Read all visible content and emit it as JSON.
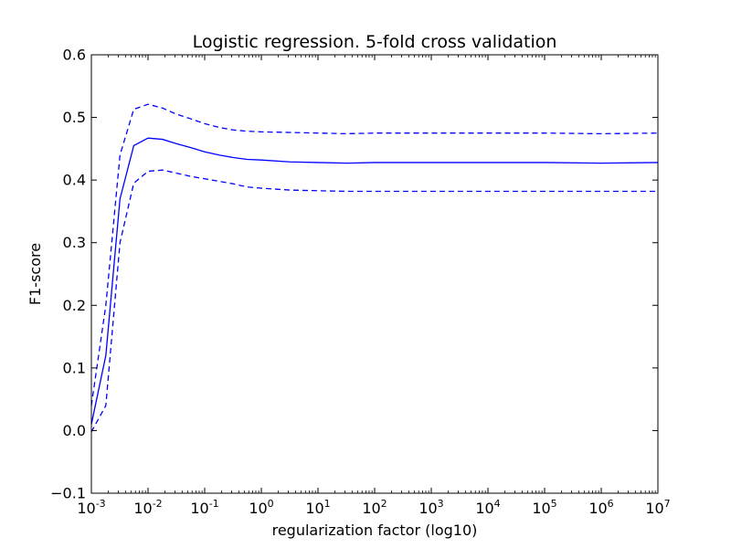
{
  "chart_data": {
    "type": "line",
    "title": "Logistic regression. 5-fold cross validation",
    "xlabel": "regularization factor (log10)",
    "ylabel": "F1-score",
    "xscale": "log",
    "xlim": [
      0.001,
      10000000
    ],
    "ylim": [
      -0.1,
      0.6
    ],
    "grid": false,
    "legend": "none",
    "line_color": "#0000ff",
    "yticks": [
      "−0.1",
      "0.0",
      "0.1",
      "0.2",
      "0.3",
      "0.4",
      "0.5",
      "0.6"
    ],
    "yticks_values": [
      -0.1,
      0.0,
      0.1,
      0.2,
      0.3,
      0.4,
      0.5,
      0.6
    ],
    "xticks": [
      {
        "base": "10",
        "exp": "-3"
      },
      {
        "base": "10",
        "exp": "-2"
      },
      {
        "base": "10",
        "exp": "-1"
      },
      {
        "base": "10",
        "exp": "0"
      },
      {
        "base": "10",
        "exp": "1"
      },
      {
        "base": "10",
        "exp": "2"
      },
      {
        "base": "10",
        "exp": "3"
      },
      {
        "base": "10",
        "exp": "4"
      },
      {
        "base": "10",
        "exp": "5"
      },
      {
        "base": "10",
        "exp": "6"
      },
      {
        "base": "10",
        "exp": "7"
      }
    ],
    "xticks_values": [
      0.001,
      0.01,
      0.1,
      1,
      10,
      100,
      1000,
      10000,
      100000,
      1000000,
      10000000
    ],
    "series": [
      {
        "style": "solid",
        "x": [
          0.001,
          0.0018,
          0.0032,
          0.0056,
          0.01,
          0.018,
          0.032,
          0.056,
          0.1,
          0.18,
          0.32,
          0.56,
          1,
          3.2,
          10,
          32,
          100,
          1000,
          10000,
          100000,
          1000000,
          10000000
        ],
        "y": [
          0.01,
          0.12,
          0.37,
          0.455,
          0.467,
          0.465,
          0.458,
          0.452,
          0.445,
          0.44,
          0.436,
          0.433,
          0.432,
          0.429,
          0.428,
          0.427,
          0.428,
          0.428,
          0.428,
          0.428,
          0.427,
          0.428
        ]
      },
      {
        "style": "dashed",
        "x": [
          0.001,
          0.0018,
          0.0032,
          0.0056,
          0.01,
          0.018,
          0.032,
          0.056,
          0.1,
          0.18,
          0.32,
          0.56,
          1,
          3.2,
          10,
          32,
          100,
          1000,
          10000,
          100000,
          1000000,
          10000000
        ],
        "y": [
          0.04,
          0.2,
          0.44,
          0.513,
          0.521,
          0.515,
          0.505,
          0.498,
          0.49,
          0.484,
          0.48,
          0.478,
          0.477,
          0.476,
          0.475,
          0.474,
          0.475,
          0.475,
          0.475,
          0.475,
          0.474,
          0.475
        ]
      },
      {
        "style": "dashed",
        "x": [
          0.001,
          0.0018,
          0.0032,
          0.0056,
          0.01,
          0.018,
          0.032,
          0.056,
          0.1,
          0.18,
          0.32,
          0.56,
          1,
          3.2,
          10,
          32,
          100,
          1000,
          10000,
          100000,
          1000000,
          10000000
        ],
        "y": [
          -0.002,
          0.04,
          0.3,
          0.395,
          0.414,
          0.416,
          0.411,
          0.406,
          0.402,
          0.398,
          0.394,
          0.389,
          0.387,
          0.384,
          0.383,
          0.382,
          0.382,
          0.382,
          0.382,
          0.382,
          0.382,
          0.382
        ]
      }
    ]
  }
}
